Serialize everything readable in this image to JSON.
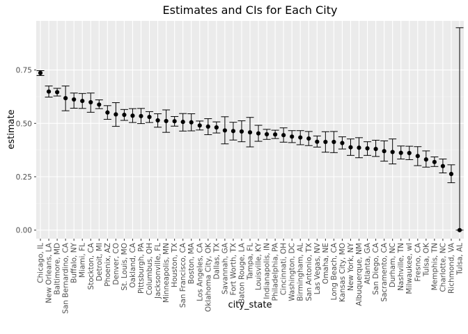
{
  "chart_data": {
    "type": "errorbar",
    "title": "Estimates and CIs for Each City",
    "xlabel": "city_state",
    "ylabel": "estimate",
    "ylim": [
      -0.04,
      0.98
    ],
    "yticks": [
      0.0,
      0.25,
      0.5,
      0.75
    ],
    "ytick_labels": [
      "0.00",
      "0.25",
      "0.50",
      "0.75"
    ],
    "grid": true,
    "categories": [
      "Chicago, IL",
      "New Orleans, LA",
      "Baltimore, MD",
      "San Bernardino, CA",
      "Buffalo, NY",
      "Miami, FL",
      "Stockton, CA",
      "Detroit, MI",
      "Phoenix, AZ",
      "Denver, CO",
      "St. Louis, MO",
      "Oakland, CA",
      "Pittsburgh, PA",
      "Columbus, OH",
      "Jacksonville, FL",
      "Minneapolis, MN",
      "Houston, TX",
      "San Francisco, CA",
      "Boston, MA",
      "Los Angeles, CA",
      "Oklahoma City, OK",
      "Dallas, TX",
      "Savannah, GA",
      "Fort Worth, TX",
      "Baton Rouge, LA",
      "Tampa, FL",
      "Louisville, KY",
      "Indianapolis, IN",
      "Philadelphia, PA",
      "Cincinnati, OH",
      "Washington, DC",
      "Birmingham, AL",
      "San Antonio, TX",
      "Las Vegas, NV",
      "Omaha, NE",
      "Long Beach, CA",
      "Kansas City, MO",
      "New York, NY",
      "Albuquerque, NM",
      "Atlanta, GA",
      "San Diego, CA",
      "Sacramento, CA",
      "Durham, NC",
      "Nashville, TN",
      "Milwaukee, wI",
      "Fresno, CA",
      "Tulsa, OK",
      "Memphis, TN",
      "Charlotte, NC",
      "Richmond, VA",
      "Tulsa, AL"
    ],
    "estimate": [
      0.736,
      0.649,
      0.646,
      0.618,
      0.612,
      0.605,
      0.599,
      0.588,
      0.551,
      0.542,
      0.54,
      0.536,
      0.534,
      0.53,
      0.514,
      0.511,
      0.51,
      0.507,
      0.505,
      0.49,
      0.485,
      0.481,
      0.467,
      0.464,
      0.462,
      0.458,
      0.453,
      0.449,
      0.448,
      0.445,
      0.438,
      0.434,
      0.429,
      0.414,
      0.413,
      0.413,
      0.408,
      0.388,
      0.386,
      0.383,
      0.38,
      0.37,
      0.366,
      0.362,
      0.361,
      0.347,
      0.331,
      0.319,
      0.3,
      0.263,
      0.0
    ],
    "ci_low": [
      0.724,
      0.623,
      0.628,
      0.559,
      0.571,
      0.57,
      0.552,
      0.569,
      0.519,
      0.486,
      0.514,
      0.504,
      0.499,
      0.504,
      0.482,
      0.458,
      0.487,
      0.464,
      0.465,
      0.469,
      0.447,
      0.455,
      0.404,
      0.422,
      0.414,
      0.39,
      0.416,
      0.425,
      0.429,
      0.412,
      0.41,
      0.4,
      0.396,
      0.389,
      0.365,
      0.363,
      0.38,
      0.35,
      0.339,
      0.35,
      0.345,
      0.323,
      0.31,
      0.333,
      0.33,
      0.302,
      0.295,
      0.298,
      0.268,
      0.222,
      0.0
    ],
    "ci_high": [
      0.747,
      0.675,
      0.664,
      0.675,
      0.642,
      0.64,
      0.642,
      0.61,
      0.583,
      0.597,
      0.565,
      0.569,
      0.57,
      0.555,
      0.545,
      0.563,
      0.532,
      0.546,
      0.545,
      0.511,
      0.522,
      0.507,
      0.531,
      0.505,
      0.512,
      0.528,
      0.491,
      0.472,
      0.468,
      0.479,
      0.466,
      0.466,
      0.462,
      0.441,
      0.461,
      0.462,
      0.437,
      0.427,
      0.433,
      0.414,
      0.421,
      0.418,
      0.427,
      0.394,
      0.393,
      0.391,
      0.371,
      0.343,
      0.333,
      0.306,
      0.948
    ]
  }
}
